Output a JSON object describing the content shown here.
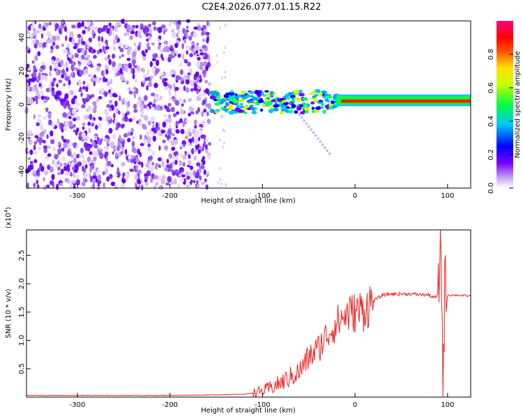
{
  "title": "C2E4.2026.077.01.15.R22",
  "chart_data": [
    {
      "type": "heatmap",
      "xlabel": "Height of straight line (km)",
      "ylabel": "Frequency (Hz)",
      "xlim": [
        -355,
        125
      ],
      "ylim": [
        -50,
        50
      ],
      "xticks": [
        "-300",
        "-200",
        "-100",
        "0",
        "100"
      ],
      "yticks": [
        "40",
        "20",
        "0",
        "-20",
        "-40"
      ],
      "colorbar": {
        "label": "Normalized spectral amplitude",
        "range": [
          0,
          1
        ],
        "ticks": [
          "0.0",
          "0.2",
          "0.4",
          "0.6",
          "0.8"
        ],
        "colors": [
          "#ffffff",
          "#c7a8f0",
          "#7a00ff",
          "#0000ff",
          "#00c8ff",
          "#00ff40",
          "#c8ff00",
          "#ffe000",
          "#ff5000",
          "#ff0000",
          "#ff0080"
        ]
      },
      "regions": [
        {
          "x_range": [
            -355,
            -157
          ],
          "freq_range": [
            -50,
            50
          ],
          "amplitude": 0.1
        },
        {
          "x_range": [
            -157,
            -20
          ],
          "freq_range": [
            -5,
            8
          ],
          "amplitude": 0.55
        },
        {
          "x_range": [
            -20,
            125
          ],
          "freq_range": [
            0,
            5
          ],
          "amplitude": 0.95
        }
      ]
    },
    {
      "type": "line",
      "xlabel": "Height of straight line (km)",
      "ylabel": "SNR (10 * v/v)",
      "y_multiplier": "(x10",
      "y_multiplier_exp": "4",
      "y_multiplier_close": ")",
      "xlim": [
        -355,
        125
      ],
      "ylim": [
        0,
        2.95
      ],
      "xticks": [
        "-300",
        "-200",
        "-100",
        "0",
        "100"
      ],
      "yticks": [
        "2.5",
        "2.0",
        "1.5",
        "1.0",
        "0.5"
      ],
      "line_color": "#ee2222",
      "series": [
        {
          "x": [
            -355,
            -300,
            -250,
            -200,
            -150,
            -120,
            -100,
            -80,
            -60,
            -50,
            -40,
            -30,
            -20,
            -10,
            0,
            10,
            20,
            30,
            40,
            60,
            80,
            85,
            90,
            93,
            95,
            97,
            100,
            110,
            125
          ],
          "y": [
            0.03,
            0.03,
            0.03,
            0.03,
            0.04,
            0.05,
            0.1,
            0.25,
            0.45,
            0.7,
            0.85,
            1.1,
            1.3,
            1.45,
            1.5,
            1.55,
            1.7,
            1.8,
            1.82,
            1.82,
            1.8,
            1.75,
            1.8,
            2.9,
            0.12,
            2.0,
            1.8,
            1.8,
            1.78
          ]
        }
      ]
    }
  ]
}
